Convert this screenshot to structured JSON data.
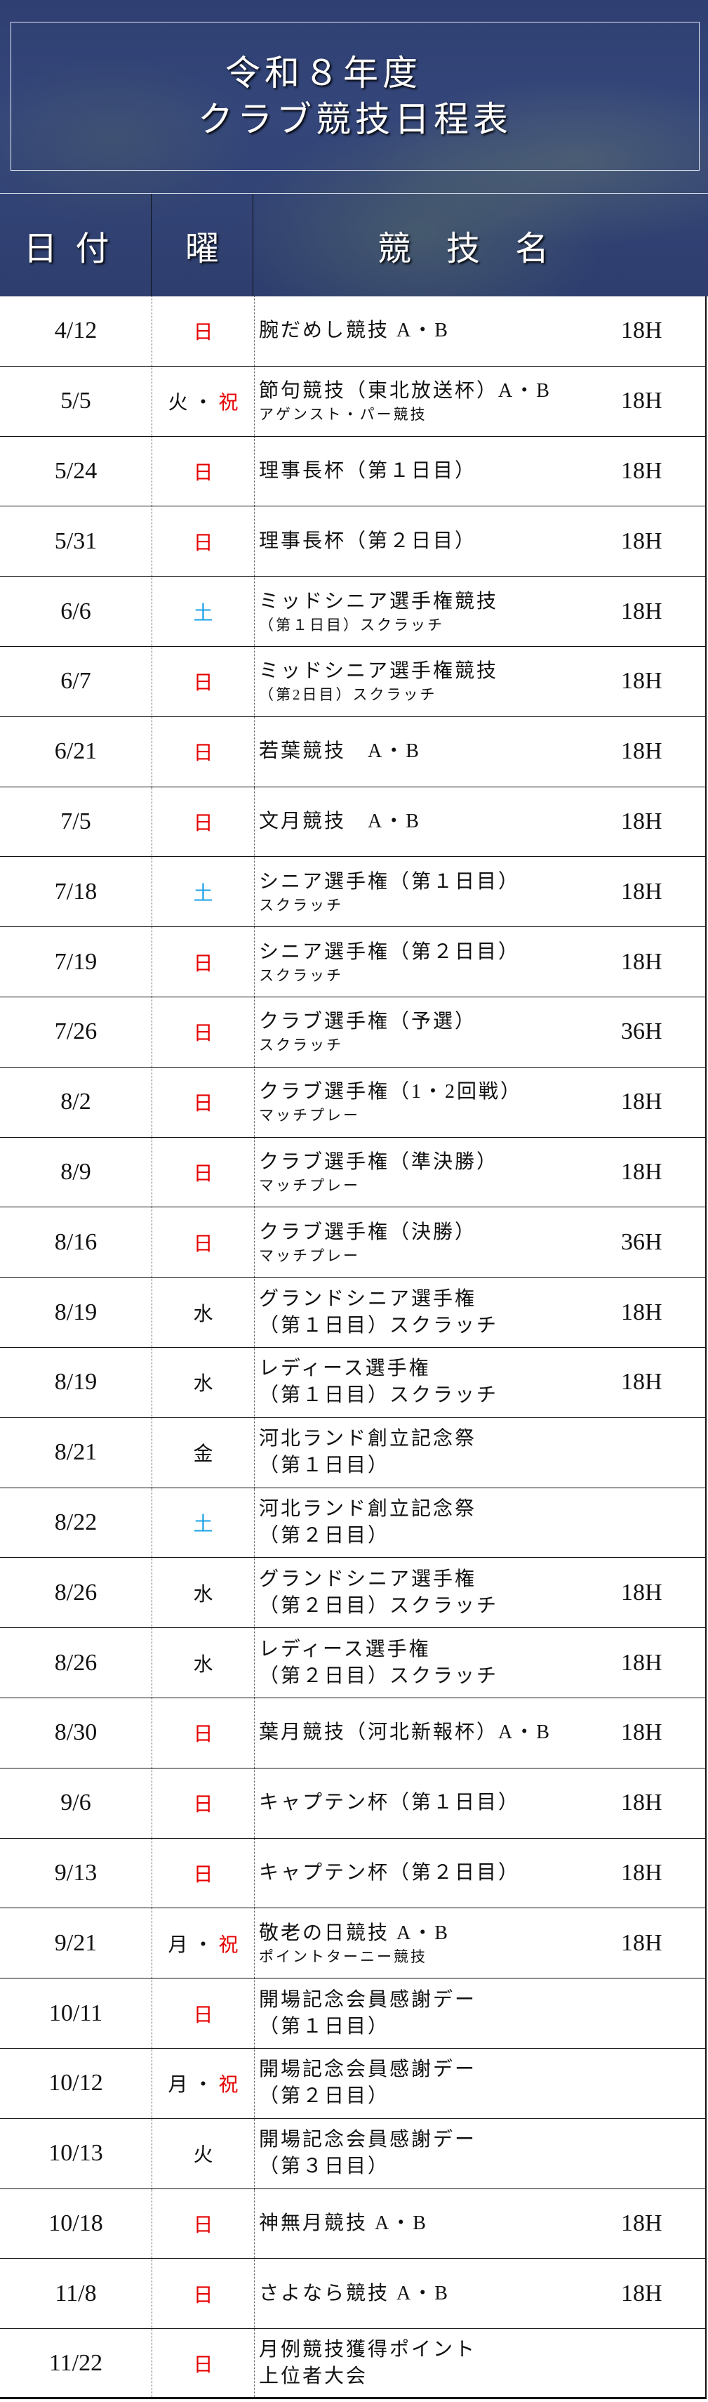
{
  "header": {
    "title_line1": "令和８年度",
    "title_line2": "クラブ競技日程表"
  },
  "columns": {
    "date": "日付",
    "weekday": "曜",
    "name": "競技名"
  },
  "colors": {
    "sunday_holiday": "#e60000",
    "saturday": "#1aa0e6",
    "header_bg": "#2f3f72"
  },
  "rows": [
    {
      "date": "4/12",
      "day": "日",
      "holiday": "",
      "name": "腕だめし競技 A・B",
      "sub": "",
      "holes": "18H"
    },
    {
      "date": "5/5",
      "day": "火",
      "holiday": "祝",
      "name": "節句競技（東北放送杯）A・B",
      "sub": "アゲンスト・パー競技",
      "holes": "18H"
    },
    {
      "date": "5/24",
      "day": "日",
      "holiday": "",
      "name": "理事長杯（第１日目）",
      "sub": "",
      "holes": "18H"
    },
    {
      "date": "5/31",
      "day": "日",
      "holiday": "",
      "name": "理事長杯（第２日目）",
      "sub": "",
      "holes": "18H"
    },
    {
      "date": "6/6",
      "day": "土",
      "holiday": "",
      "name": "ミッドシニア選手権競技",
      "sub": "（第１日目）スクラッチ",
      "holes": "18H"
    },
    {
      "date": "6/7",
      "day": "日",
      "holiday": "",
      "name": "ミッドシニア選手権競技",
      "sub": "（第2日目）スクラッチ",
      "holes": "18H"
    },
    {
      "date": "6/21",
      "day": "日",
      "holiday": "",
      "name": "若葉競技　A・B",
      "sub": "",
      "holes": "18H"
    },
    {
      "date": "7/5",
      "day": "日",
      "holiday": "",
      "name": "文月競技　A・B",
      "sub": "",
      "holes": "18H"
    },
    {
      "date": "7/18",
      "day": "土",
      "holiday": "",
      "name": "シニア選手権（第１日目）",
      "sub": "スクラッチ",
      "holes": "18H"
    },
    {
      "date": "7/19",
      "day": "日",
      "holiday": "",
      "name": "シニア選手権（第２日目）",
      "sub": "スクラッチ",
      "holes": "18H"
    },
    {
      "date": "7/26",
      "day": "日",
      "holiday": "",
      "name": "クラブ選手権（予選）",
      "sub": "スクラッチ",
      "holes": "36H"
    },
    {
      "date": "8/2",
      "day": "日",
      "holiday": "",
      "name": "クラブ選手権（1・2回戦）",
      "sub": "マッチプレー",
      "holes": "18H"
    },
    {
      "date": "8/9",
      "day": "日",
      "holiday": "",
      "name": "クラブ選手権（準決勝）",
      "sub": "マッチプレー",
      "holes": "18H"
    },
    {
      "date": "8/16",
      "day": "日",
      "holiday": "",
      "name": "クラブ選手権（決勝）",
      "sub": "マッチプレー",
      "holes": "36H"
    },
    {
      "date": "8/19",
      "day": "水",
      "holiday": "",
      "name": "グランドシニア選手権",
      "sub": "（第１日目）スクラッチ",
      "holes": "18H"
    },
    {
      "date": "8/19",
      "day": "水",
      "holiday": "",
      "name": "レディース選手権",
      "sub": "（第１日目）スクラッチ",
      "holes": "18H"
    },
    {
      "date": "8/21",
      "day": "金",
      "holiday": "",
      "name": "河北ランド創立記念祭",
      "sub": "（第１日目）",
      "holes": ""
    },
    {
      "date": "8/22",
      "day": "土",
      "holiday": "",
      "name": "河北ランド創立記念祭",
      "sub": "（第２日目）",
      "holes": ""
    },
    {
      "date": "8/26",
      "day": "水",
      "holiday": "",
      "name": "グランドシニア選手権",
      "sub": "（第２日目）スクラッチ",
      "holes": "18H"
    },
    {
      "date": "8/26",
      "day": "水",
      "holiday": "",
      "name": "レディース選手権",
      "sub": "（第２日目）スクラッチ",
      "holes": "18H"
    },
    {
      "date": "8/30",
      "day": "日",
      "holiday": "",
      "name": "葉月競技（河北新報杯）A・B",
      "sub": "",
      "holes": "18H"
    },
    {
      "date": "9/6",
      "day": "日",
      "holiday": "",
      "name": "キャプテン杯（第１日目）",
      "sub": "",
      "holes": "18H"
    },
    {
      "date": "9/13",
      "day": "日",
      "holiday": "",
      "name": "キャプテン杯（第２日目）",
      "sub": "",
      "holes": "18H"
    },
    {
      "date": "9/21",
      "day": "月",
      "holiday": "祝",
      "name": "敬老の日競技 A・B",
      "sub": "ポイントターニー競技",
      "holes": "18H"
    },
    {
      "date": "10/11",
      "day": "日",
      "holiday": "",
      "name": "開場記念会員感謝デー",
      "sub": "（第１日目）",
      "holes": ""
    },
    {
      "date": "10/12",
      "day": "月",
      "holiday": "祝",
      "name": "開場記念会員感謝デー",
      "sub": "（第２日目）",
      "holes": ""
    },
    {
      "date": "10/13",
      "day": "火",
      "holiday": "",
      "name": "開場記念会員感謝デー",
      "sub": "（第３日目）",
      "holes": ""
    },
    {
      "date": "10/18",
      "day": "日",
      "holiday": "",
      "name": "神無月競技 A・B",
      "sub": "",
      "holes": "18H"
    },
    {
      "date": "11/8",
      "day": "日",
      "holiday": "",
      "name": "さよなら競技 A・B",
      "sub": "",
      "holes": "18H"
    },
    {
      "date": "11/22",
      "day": "日",
      "holiday": "",
      "name": "月例競技獲得ポイント",
      "sub": "上位者大会",
      "holes": ""
    }
  ]
}
